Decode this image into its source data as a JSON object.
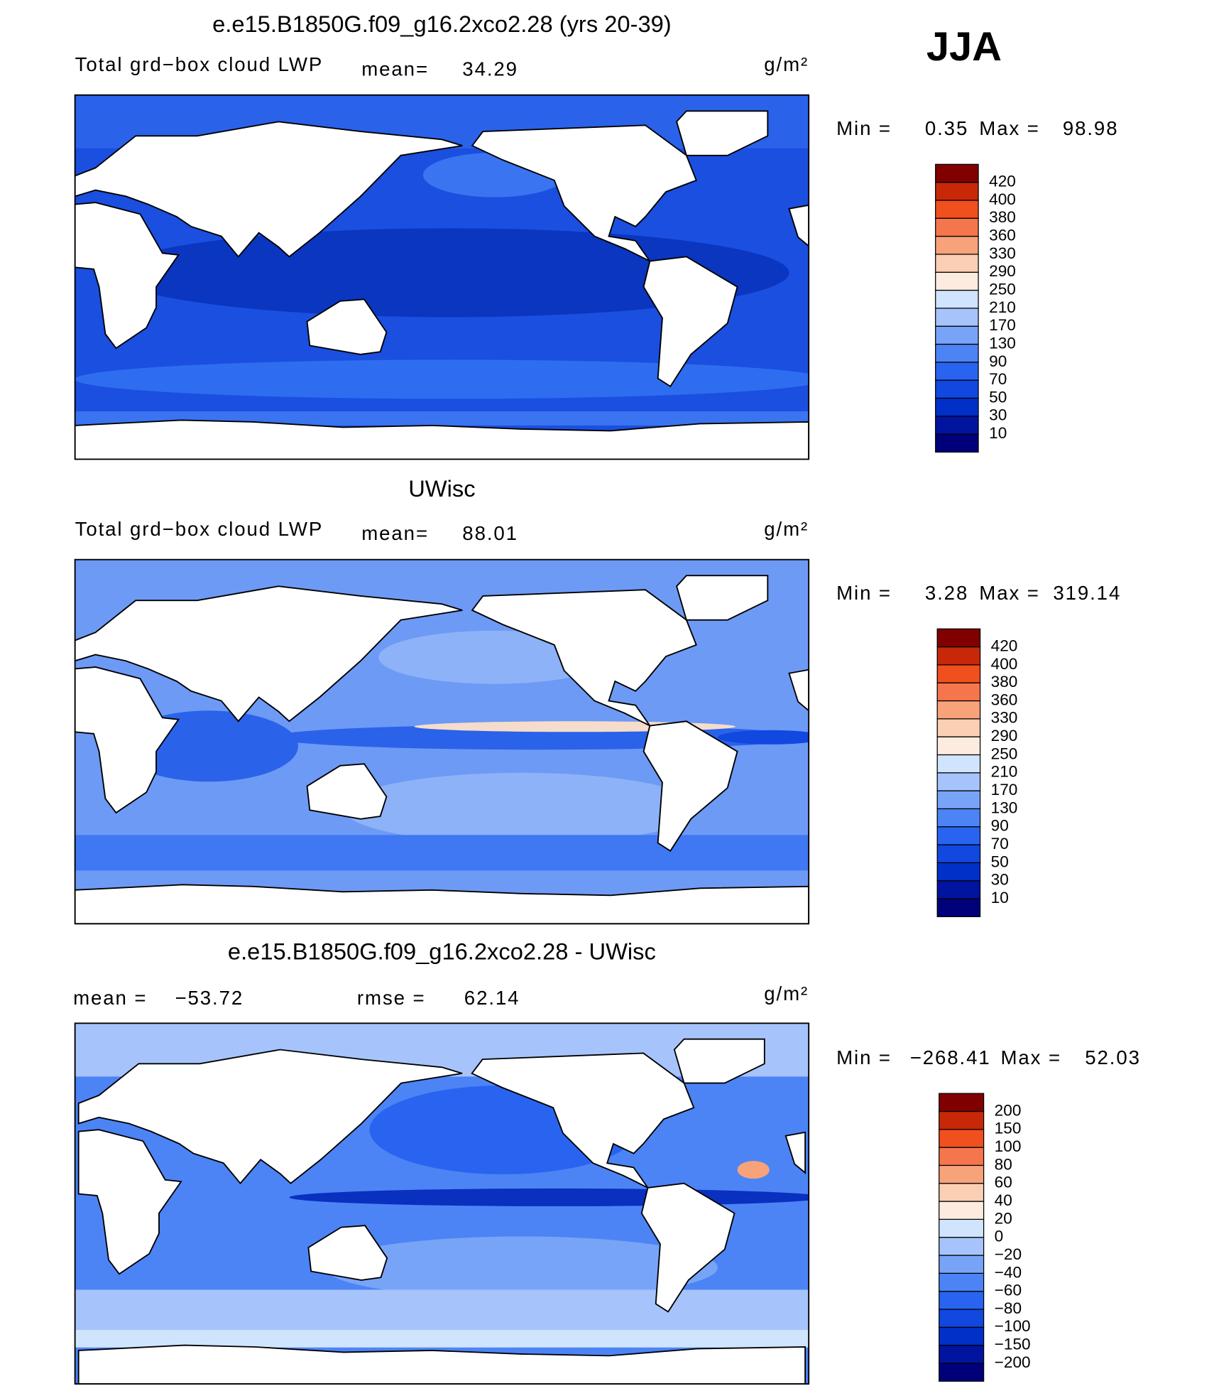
{
  "season": "JJA",
  "panels": [
    {
      "title": "e.e15.B1850G.f09_g16.2xco2.28 (yrs 20-39)",
      "variable": "Total grd−box cloud LWP",
      "mean_label": "mean=",
      "mean": "34.29",
      "units": "g/m²",
      "min_label": "Min =",
      "min": "0.35",
      "max_label": "Max =",
      "max": "98.98",
      "colorbar": {
        "labels": [
          "10",
          "30",
          "50",
          "70",
          "90",
          "130",
          "170",
          "210",
          "250",
          "290",
          "330",
          "360",
          "380",
          "400",
          "420"
        ],
        "colors": [
          "#00007a",
          "#0014a0",
          "#0030c8",
          "#1048e0",
          "#2864f0",
          "#4c84f5",
          "#78a4f8",
          "#a6c4fb",
          "#d0e4fd",
          "#fdebdf",
          "#fbcfb4",
          "#f8a27a",
          "#f5764c",
          "#f0501e",
          "#c82808",
          "#800000"
        ]
      }
    },
    {
      "title": "UWisc",
      "variable": "Total grd−box cloud LWP",
      "mean_label": "mean=",
      "mean": "88.01",
      "units": "g/m²",
      "min_label": "Min =",
      "min": "3.28",
      "max_label": "Max =",
      "max": "319.14",
      "colorbar": {
        "labels": [
          "10",
          "30",
          "50",
          "70",
          "90",
          "130",
          "170",
          "210",
          "250",
          "290",
          "330",
          "360",
          "380",
          "400",
          "420"
        ],
        "colors": [
          "#00007a",
          "#0014a0",
          "#0030c8",
          "#1048e0",
          "#2864f0",
          "#4c84f5",
          "#78a4f8",
          "#a6c4fb",
          "#d0e4fd",
          "#fdebdf",
          "#fbcfb4",
          "#f8a27a",
          "#f5764c",
          "#f0501e",
          "#c82808",
          "#800000"
        ]
      }
    },
    {
      "title": "e.e15.B1850G.f09_g16.2xco2.28 - UWisc",
      "mean_label": "mean =",
      "mean": "−53.72",
      "rmse_label": "rmse =",
      "rmse": "62.14",
      "units": "g/m²",
      "min_label": "Min =",
      "min": "−268.41",
      "max_label": "Max =",
      "max": "52.03",
      "colorbar": {
        "labels": [
          "−200",
          "−150",
          "−100",
          "−80",
          "−60",
          "−40",
          "−20",
          "0",
          "20",
          "40",
          "60",
          "80",
          "100",
          "150",
          "200"
        ],
        "colors": [
          "#00007a",
          "#0014a0",
          "#0030c8",
          "#1048e0",
          "#2864f0",
          "#4c84f5",
          "#78a4f8",
          "#a6c4fb",
          "#d0e4fd",
          "#fdebdf",
          "#fbcfb4",
          "#f8a27a",
          "#f5764c",
          "#f0501e",
          "#c82808",
          "#800000"
        ]
      }
    }
  ]
}
